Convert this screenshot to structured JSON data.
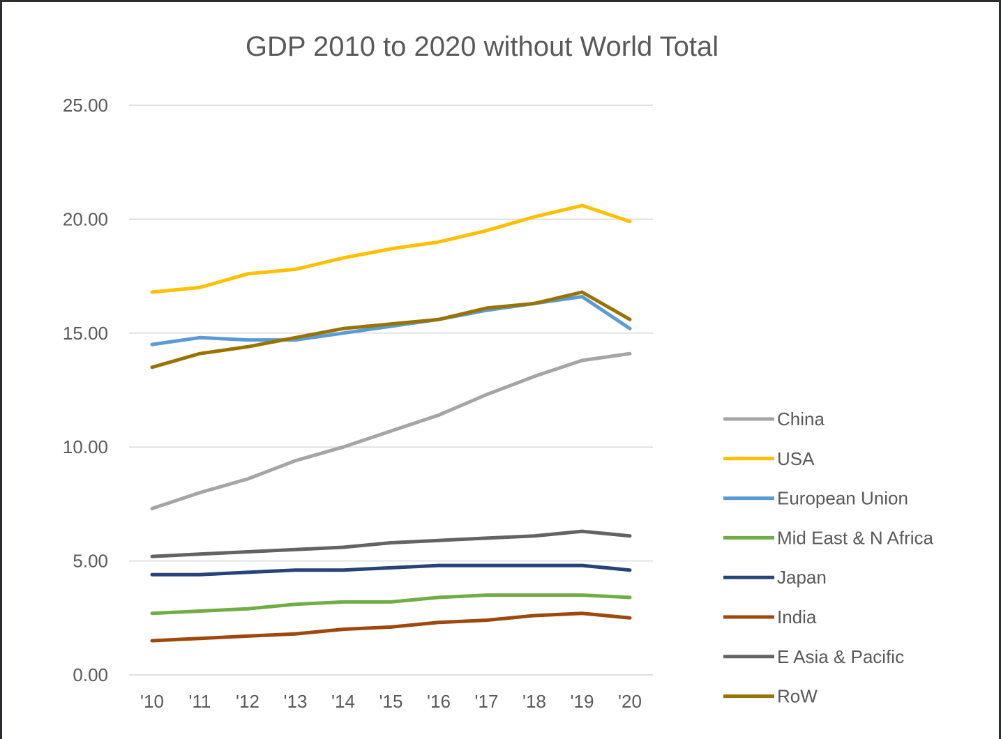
{
  "chart_data": {
    "type": "line",
    "title": "GDP 2010 to 2020 without World Total",
    "xlabel": "",
    "ylabel": "",
    "categories": [
      "'10",
      "'11",
      "'12",
      "'13",
      "'14",
      "'15",
      "'16",
      "'17",
      "'18",
      "'19",
      "'20"
    ],
    "ylim": [
      0,
      25
    ],
    "yticks": [
      "0.00",
      "5.00",
      "10.00",
      "15.00",
      "20.00",
      "25.00"
    ],
    "grid": true,
    "legend_position": "right",
    "series": [
      {
        "name": "China",
        "color": "#a5a5a5",
        "values": [
          7.3,
          8.0,
          8.6,
          9.4,
          10.0,
          10.7,
          11.4,
          12.3,
          13.1,
          13.8,
          14.1
        ]
      },
      {
        "name": "USA",
        "color": "#ffc000",
        "values": [
          16.8,
          17.0,
          17.6,
          17.8,
          18.3,
          18.7,
          19.0,
          19.5,
          20.1,
          20.6,
          19.9
        ]
      },
      {
        "name": "European Union",
        "color": "#5b9bd5",
        "values": [
          14.5,
          14.8,
          14.7,
          14.7,
          15.0,
          15.3,
          15.6,
          16.0,
          16.3,
          16.6,
          15.2
        ]
      },
      {
        "name": "Mid East & N Africa",
        "color": "#70ad47",
        "values": [
          2.7,
          2.8,
          2.9,
          3.1,
          3.2,
          3.2,
          3.4,
          3.5,
          3.5,
          3.5,
          3.4
        ]
      },
      {
        "name": "Japan",
        "color": "#264478",
        "values": [
          4.4,
          4.4,
          4.5,
          4.6,
          4.6,
          4.7,
          4.8,
          4.8,
          4.8,
          4.8,
          4.6
        ]
      },
      {
        "name": "India",
        "color": "#9e480e",
        "values": [
          1.5,
          1.6,
          1.7,
          1.8,
          2.0,
          2.1,
          2.3,
          2.4,
          2.6,
          2.7,
          2.5
        ]
      },
      {
        "name": "E Asia & Pacific",
        "color": "#636363",
        "values": [
          5.2,
          5.3,
          5.4,
          5.5,
          5.6,
          5.8,
          5.9,
          6.0,
          6.1,
          6.3,
          6.1
        ]
      },
      {
        "name": "RoW",
        "color": "#997300",
        "values": [
          13.5,
          14.1,
          14.4,
          14.8,
          15.2,
          15.4,
          15.6,
          16.1,
          16.3,
          16.8,
          15.6
        ]
      }
    ]
  }
}
